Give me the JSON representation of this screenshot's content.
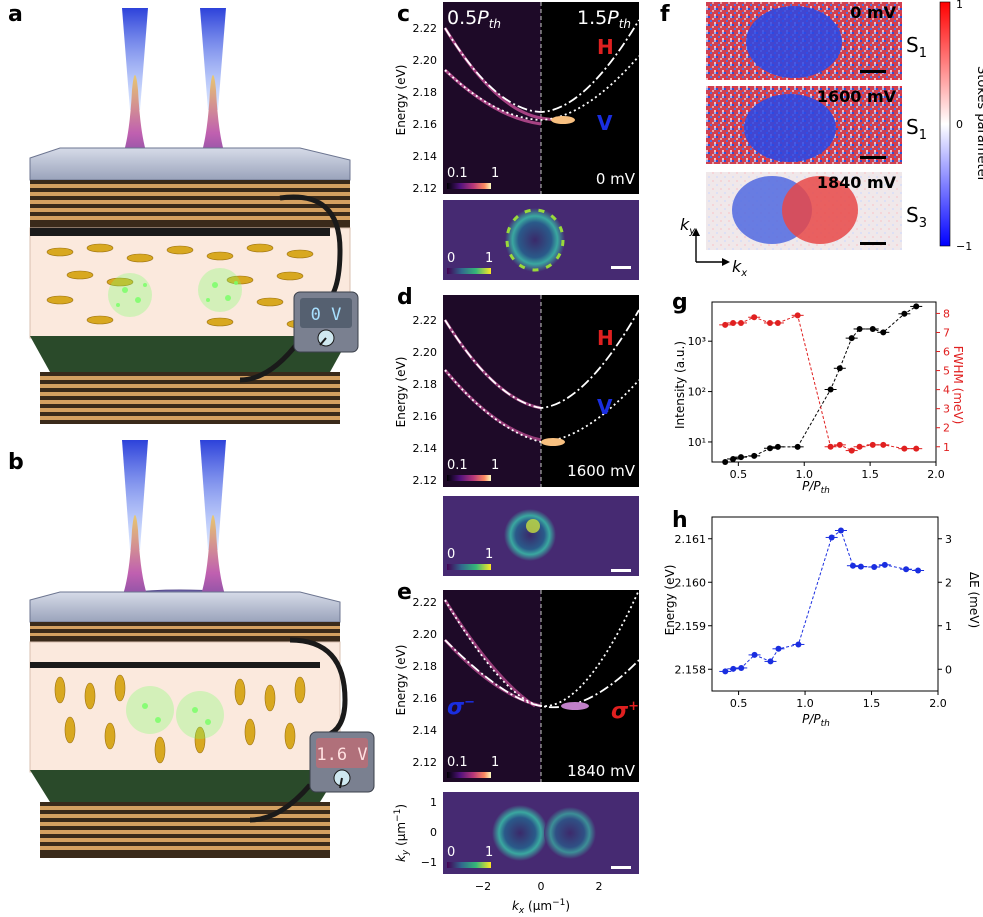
{
  "panel_letters": {
    "a": "a",
    "b": "b",
    "c": "c",
    "d": "d",
    "e": "e",
    "f": "f",
    "g": "g",
    "h": "h"
  },
  "illustrations": {
    "a_voltage": "0 V",
    "b_voltage": "1.6 V"
  },
  "dispersion": {
    "ylabel": "Energy (eV)",
    "yticks": [
      "2.22",
      "2.20",
      "2.18",
      "2.16",
      "2.14",
      "2.12"
    ],
    "left_label_base": "0.5",
    "left_label_sym": "P",
    "left_label_sub": "th",
    "right_label_base": "1.5",
    "right_label_sym": "P",
    "right_label_sub": "th",
    "colorbar_min": "0.1",
    "colorbar_max": "1",
    "c": {
      "voltage": "0 mV",
      "H": "H",
      "V": "V"
    },
    "d": {
      "voltage": "1600 mV",
      "H": "H",
      "V": "V"
    },
    "e": {
      "voltage": "1840 mV",
      "sigma_minus": "σ",
      "sigma_plus": "σ",
      "sup_minus": "−",
      "sup_plus": "+"
    }
  },
  "realspace": {
    "colorbar_min": "0",
    "colorbar_max": "1",
    "ylabel_base": "k",
    "ylabel_sub": "y",
    "ylabel_unit": " (μm",
    "ylabel_exp": "−1",
    "ylabel_close": ")",
    "yticks": [
      "1",
      "0",
      "−1"
    ],
    "xticks": [
      "−2",
      "0",
      "2"
    ],
    "xlabel_base": "k",
    "xlabel_sub": "x",
    "xlabel_unit": " (μm",
    "xlabel_exp": "−1",
    "xlabel_close": ")"
  },
  "stokes": {
    "row1": {
      "voltage": "0 mV",
      "param": "S",
      "sub": "1"
    },
    "row2": {
      "voltage": "1600 mV",
      "param": "S",
      "sub": "1"
    },
    "row3": {
      "voltage": "1840 mV",
      "param": "S",
      "sub": "3"
    },
    "colorbar_label": "Stokes parameter",
    "colorbar_ticks": [
      "1",
      "0",
      "−1"
    ],
    "kx_base": "k",
    "kx_sub": "x",
    "ky_base": "k",
    "ky_sub": "y"
  },
  "chart_data": [
    {
      "type": "scatter",
      "panel": "g",
      "xlabel_base": "P/P",
      "xlabel_sub": "th",
      "ylabel": "Intensity (a.u.)",
      "ylabel_right": "FWHM (meV)",
      "yscale": "log",
      "xlim": [
        0.3,
        2.0
      ],
      "ylim": [
        4,
        6000
      ],
      "ylim_right": [
        0.2,
        8.6
      ],
      "xticks": [
        "0.5",
        "1.0",
        "1.5",
        "2.0"
      ],
      "yticks": [
        "10¹",
        "10²",
        "10³"
      ],
      "yticks_right": [
        "1",
        "2",
        "3",
        "4",
        "5",
        "6",
        "7",
        "8"
      ],
      "series": [
        {
          "name": "Intensity",
          "color": "#000000",
          "axis": "left",
          "x": [
            0.4,
            0.46,
            0.52,
            0.62,
            0.74,
            0.8,
            0.95,
            1.2,
            1.27,
            1.36,
            1.42,
            1.52,
            1.6,
            1.76,
            1.85
          ],
          "y": [
            4,
            4.6,
            5.0,
            5.3,
            7.5,
            8.0,
            8.0,
            110,
            290,
            1150,
            1750,
            1750,
            1500,
            3500,
            4900
          ]
        },
        {
          "name": "FWHM",
          "color": "#e02020",
          "axis": "right",
          "x": [
            0.4,
            0.46,
            0.52,
            0.62,
            0.74,
            0.8,
            0.95,
            1.2,
            1.27,
            1.36,
            1.42,
            1.52,
            1.6,
            1.76,
            1.85
          ],
          "y": [
            7.4,
            7.5,
            7.5,
            7.8,
            7.5,
            7.5,
            7.9,
            1.0,
            1.1,
            0.8,
            1.0,
            1.1,
            1.1,
            0.9,
            0.9
          ]
        }
      ]
    },
    {
      "type": "scatter",
      "panel": "h",
      "xlabel_base": "P/P",
      "xlabel_sub": "th",
      "ylabel": "Energy (eV)",
      "ylabel_right": "ΔE (meV)",
      "xlim": [
        0.3,
        2.0
      ],
      "ylim": [
        2.1575,
        2.1615
      ],
      "ylim_right": [
        -0.5,
        3.5
      ],
      "xticks": [
        "0.5",
        "1.0",
        "1.5",
        "2.0"
      ],
      "yticks": [
        "2.158",
        "2.159",
        "2.160",
        "2.161"
      ],
      "yticks_right": [
        "0",
        "1",
        "2",
        "3"
      ],
      "series": [
        {
          "name": "Energy",
          "color": "#1a2ee0",
          "axis": "left",
          "x": [
            0.4,
            0.46,
            0.52,
            0.62,
            0.74,
            0.8,
            0.95,
            1.2,
            1.27,
            1.36,
            1.42,
            1.52,
            1.6,
            1.76,
            1.85
          ],
          "y": [
            2.15795,
            2.15801,
            2.15803,
            2.15833,
            2.15818,
            2.15847,
            2.15857,
            2.16103,
            2.16119,
            2.16038,
            2.16036,
            2.16035,
            2.1604,
            2.1603,
            2.16027
          ]
        }
      ]
    }
  ]
}
